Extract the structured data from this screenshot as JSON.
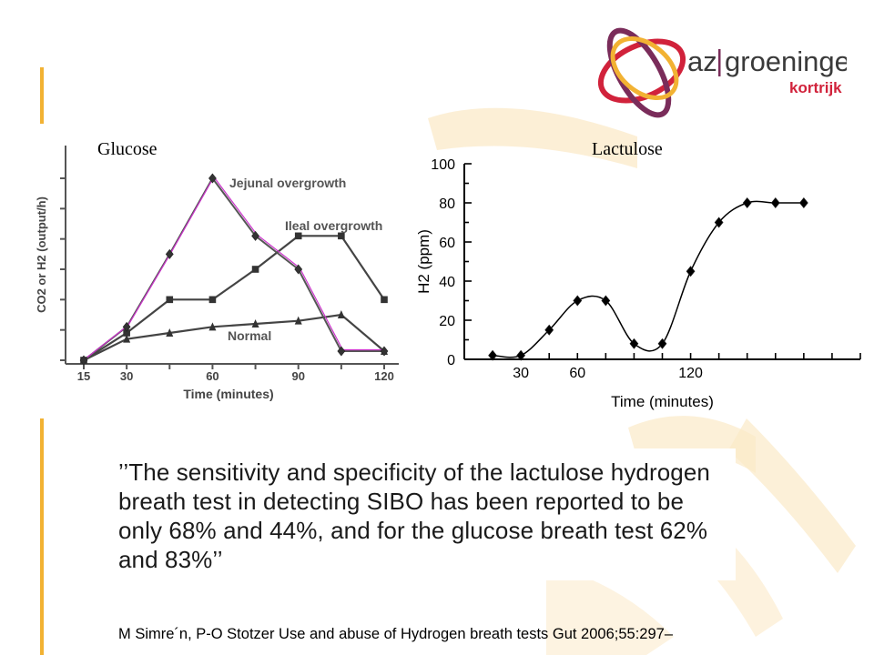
{
  "slide": {
    "logo": {
      "name_part1": "az",
      "name_part2": "groeninge",
      "subtitle": "kortrijk",
      "colors": {
        "brand_red": "#d1223b",
        "brand_purple": "#7a2c5a",
        "brand_orange": "#f2b233"
      }
    },
    "quote": "’’The sensitivity and specificity of the lactulose hydrogen breath test in detecting SIBO has been reported to be only 68% and 44%, and for the glucose breath test 62% and 83%’’",
    "citation": "M Simre´n, P-O Stotzer Use and abuse of Hydrogen breath tests Gut 2006;55:297–"
  },
  "chart_data": [
    {
      "type": "line",
      "title": "Glucose",
      "xlabel": "Time (minutes)",
      "ylabel": "CO2 or H2 (output/h)",
      "x_ticks": [
        "15",
        "30",
        "60",
        "90",
        "120"
      ],
      "xlim": [
        15,
        120
      ],
      "ylim": [
        0,
        6
      ],
      "y_ticks_labeled": false,
      "grid": false,
      "series": [
        {
          "name": "Jejunal overgrowth",
          "marker": "diamond",
          "color": "#cc33cc",
          "x": [
            15,
            30,
            45,
            60,
            75,
            90,
            105,
            120
          ],
          "y": [
            0,
            1.1,
            3.5,
            6.0,
            4.1,
            3.0,
            0.3,
            0.3
          ]
        },
        {
          "name": "Ileal overgrowth",
          "marker": "square",
          "color": "#444444",
          "x": [
            15,
            30,
            45,
            60,
            75,
            90,
            105,
            120
          ],
          "y": [
            0,
            0.9,
            2.0,
            2.0,
            3.0,
            4.1,
            4.1,
            2.0
          ]
        },
        {
          "name": "Normal",
          "marker": "triangle",
          "color": "#444444",
          "x": [
            15,
            30,
            45,
            60,
            75,
            90,
            105,
            120
          ],
          "y": [
            0,
            0.7,
            0.9,
            1.1,
            1.2,
            1.3,
            1.5,
            0.3
          ]
        }
      ]
    },
    {
      "type": "line",
      "title": "Lactulose",
      "xlabel": "Time (minutes)",
      "ylabel": "H2 (ppm)",
      "x_ticks": [
        "30",
        "60",
        "120"
      ],
      "y_ticks": [
        "0",
        "20",
        "40",
        "60",
        "80",
        "100"
      ],
      "xlim": [
        0,
        210
      ],
      "ylim": [
        0,
        100
      ],
      "grid": false,
      "series": [
        {
          "marker": "diamond",
          "color": "#000000",
          "x": [
            15,
            30,
            45,
            60,
            75,
            90,
            105,
            120,
            135,
            150,
            165,
            180
          ],
          "y": [
            2,
            2,
            15,
            30,
            30,
            8,
            8,
            45,
            70,
            80,
            80,
            80
          ]
        }
      ]
    }
  ]
}
